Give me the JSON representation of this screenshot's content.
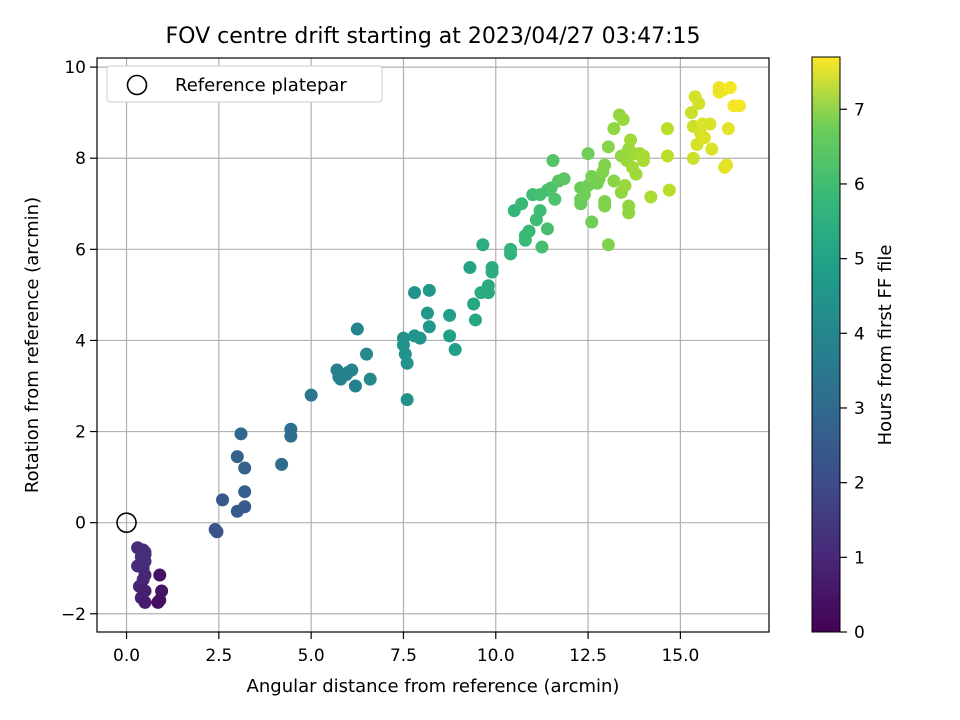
{
  "chart_data": {
    "type": "scatter",
    "title": "FOV centre drift starting at 2023/04/27 03:47:15",
    "xlabel": "Angular distance from reference (arcmin)",
    "ylabel": "Rotation from reference (arcmin)",
    "xlim": [
      -0.8,
      17.4
    ],
    "ylim": [
      -2.4,
      10.2
    ],
    "xticks": [
      "0.0",
      "2.5",
      "5.0",
      "7.5",
      "10.0",
      "12.5",
      "15.0"
    ],
    "yticks": [
      "−2",
      "0",
      "2",
      "4",
      "6",
      "8",
      "10"
    ],
    "grid": true,
    "legend": {
      "position": "top-left",
      "label": "Reference platepar"
    },
    "reference_point": {
      "x": 0,
      "y": 0
    },
    "colorbar": {
      "label": "Hours from first FF file",
      "colormap": "viridis",
      "range": [
        0,
        7.7
      ],
      "ticks": [
        "0",
        "1",
        "2",
        "3",
        "4",
        "5",
        "6",
        "7"
      ]
    },
    "points": [
      {
        "x": 0.3,
        "y": -0.55,
        "c": 0.9
      },
      {
        "x": 0.45,
        "y": -0.6,
        "c": 0.9
      },
      {
        "x": 0.5,
        "y": -0.7,
        "c": 1.0
      },
      {
        "x": 0.3,
        "y": -0.95,
        "c": 0.9
      },
      {
        "x": 0.5,
        "y": -0.85,
        "c": 1.0
      },
      {
        "x": 0.45,
        "y": -1.0,
        "c": 1.0
      },
      {
        "x": 0.5,
        "y": -1.15,
        "c": 0.8
      },
      {
        "x": 0.45,
        "y": -1.25,
        "c": 0.8
      },
      {
        "x": 0.35,
        "y": -1.4,
        "c": 0.8
      },
      {
        "x": 0.5,
        "y": -1.5,
        "c": 0.7
      },
      {
        "x": 0.4,
        "y": -1.65,
        "c": 0.7
      },
      {
        "x": 0.5,
        "y": -1.75,
        "c": 0.6
      },
      {
        "x": 0.9,
        "y": -1.15,
        "c": 0.4
      },
      {
        "x": 0.95,
        "y": -1.5,
        "c": 0.4
      },
      {
        "x": 0.9,
        "y": -1.7,
        "c": 0.4
      },
      {
        "x": 0.85,
        "y": -1.75,
        "c": 0.3
      },
      {
        "x": 0.4,
        "y": -0.75,
        "c": 1.0
      },
      {
        "x": 0.5,
        "y": -0.65,
        "c": 1.0
      },
      {
        "x": 2.45,
        "y": -0.2,
        "c": 2.0
      },
      {
        "x": 2.4,
        "y": -0.15,
        "c": 2.0
      },
      {
        "x": 2.6,
        "y": 0.5,
        "c": 2.1
      },
      {
        "x": 3.0,
        "y": 0.25,
        "c": 2.2
      },
      {
        "x": 3.2,
        "y": 0.35,
        "c": 2.2
      },
      {
        "x": 3.2,
        "y": 0.68,
        "c": 2.3
      },
      {
        "x": 3.0,
        "y": 1.45,
        "c": 2.4
      },
      {
        "x": 3.2,
        "y": 1.2,
        "c": 2.4
      },
      {
        "x": 3.1,
        "y": 1.95,
        "c": 2.6
      },
      {
        "x": 4.2,
        "y": 1.28,
        "c": 2.7
      },
      {
        "x": 4.45,
        "y": 2.05,
        "c": 2.8
      },
      {
        "x": 4.45,
        "y": 1.9,
        "c": 2.8
      },
      {
        "x": 5.0,
        "y": 2.8,
        "c": 3.0
      },
      {
        "x": 5.7,
        "y": 3.35,
        "c": 3.3
      },
      {
        "x": 5.75,
        "y": 3.2,
        "c": 3.3
      },
      {
        "x": 5.8,
        "y": 3.15,
        "c": 3.4
      },
      {
        "x": 6.0,
        "y": 3.3,
        "c": 3.4
      },
      {
        "x": 6.1,
        "y": 3.35,
        "c": 3.5
      },
      {
        "x": 5.95,
        "y": 3.25,
        "c": 3.4
      },
      {
        "x": 6.2,
        "y": 3.0,
        "c": 3.4
      },
      {
        "x": 6.25,
        "y": 4.25,
        "c": 3.5
      },
      {
        "x": 6.5,
        "y": 3.7,
        "c": 3.6
      },
      {
        "x": 6.6,
        "y": 3.15,
        "c": 3.6
      },
      {
        "x": 7.5,
        "y": 4.05,
        "c": 3.9
      },
      {
        "x": 7.5,
        "y": 3.9,
        "c": 3.9
      },
      {
        "x": 7.55,
        "y": 3.7,
        "c": 3.9
      },
      {
        "x": 7.6,
        "y": 3.5,
        "c": 3.9
      },
      {
        "x": 7.6,
        "y": 2.7,
        "c": 3.9
      },
      {
        "x": 7.8,
        "y": 4.1,
        "c": 4.0
      },
      {
        "x": 7.95,
        "y": 4.05,
        "c": 4.0
      },
      {
        "x": 7.8,
        "y": 5.05,
        "c": 4.0
      },
      {
        "x": 8.15,
        "y": 4.6,
        "c": 4.1
      },
      {
        "x": 8.2,
        "y": 4.3,
        "c": 4.1
      },
      {
        "x": 8.2,
        "y": 5.1,
        "c": 4.1
      },
      {
        "x": 8.75,
        "y": 4.55,
        "c": 4.3
      },
      {
        "x": 8.75,
        "y": 4.1,
        "c": 4.3
      },
      {
        "x": 8.9,
        "y": 3.8,
        "c": 4.3
      },
      {
        "x": 9.3,
        "y": 5.6,
        "c": 4.5
      },
      {
        "x": 9.4,
        "y": 4.8,
        "c": 4.6
      },
      {
        "x": 9.45,
        "y": 4.45,
        "c": 4.6
      },
      {
        "x": 9.6,
        "y": 5.05,
        "c": 4.7
      },
      {
        "x": 9.8,
        "y": 5.2,
        "c": 4.7
      },
      {
        "x": 9.8,
        "y": 5.05,
        "c": 4.7
      },
      {
        "x": 9.65,
        "y": 6.1,
        "c": 4.8
      },
      {
        "x": 9.9,
        "y": 5.6,
        "c": 4.8
      },
      {
        "x": 9.9,
        "y": 5.5,
        "c": 4.8
      },
      {
        "x": 10.4,
        "y": 6.0,
        "c": 5.0
      },
      {
        "x": 10.4,
        "y": 5.9,
        "c": 5.0
      },
      {
        "x": 10.5,
        "y": 6.85,
        "c": 5.1
      },
      {
        "x": 10.8,
        "y": 6.3,
        "c": 5.2
      },
      {
        "x": 10.8,
        "y": 6.2,
        "c": 5.2
      },
      {
        "x": 10.7,
        "y": 7.0,
        "c": 5.2
      },
      {
        "x": 10.9,
        "y": 6.4,
        "c": 5.2
      },
      {
        "x": 11.0,
        "y": 7.2,
        "c": 5.3
      },
      {
        "x": 11.1,
        "y": 6.65,
        "c": 5.3
      },
      {
        "x": 11.2,
        "y": 6.85,
        "c": 5.3
      },
      {
        "x": 11.25,
        "y": 6.05,
        "c": 5.4
      },
      {
        "x": 11.2,
        "y": 7.2,
        "c": 5.4
      },
      {
        "x": 11.4,
        "y": 6.45,
        "c": 5.4
      },
      {
        "x": 11.4,
        "y": 7.3,
        "c": 5.4
      },
      {
        "x": 11.5,
        "y": 7.35,
        "c": 5.5
      },
      {
        "x": 11.55,
        "y": 7.95,
        "c": 5.6
      },
      {
        "x": 11.6,
        "y": 7.1,
        "c": 5.5
      },
      {
        "x": 11.7,
        "y": 7.5,
        "c": 5.6
      },
      {
        "x": 11.85,
        "y": 7.55,
        "c": 5.7
      },
      {
        "x": 12.3,
        "y": 7.0,
        "c": 5.9
      },
      {
        "x": 12.3,
        "y": 7.1,
        "c": 5.9
      },
      {
        "x": 12.3,
        "y": 7.35,
        "c": 5.9
      },
      {
        "x": 12.4,
        "y": 7.2,
        "c": 6.0
      },
      {
        "x": 12.5,
        "y": 7.4,
        "c": 6.0
      },
      {
        "x": 12.5,
        "y": 8.1,
        "c": 6.0
      },
      {
        "x": 12.6,
        "y": 7.6,
        "c": 6.1
      },
      {
        "x": 12.6,
        "y": 6.6,
        "c": 6.0
      },
      {
        "x": 12.75,
        "y": 7.45,
        "c": 6.1
      },
      {
        "x": 12.8,
        "y": 7.55,
        "c": 6.1
      },
      {
        "x": 12.9,
        "y": 7.7,
        "c": 6.2
      },
      {
        "x": 12.95,
        "y": 7.85,
        "c": 6.2
      },
      {
        "x": 12.95,
        "y": 7.05,
        "c": 6.2
      },
      {
        "x": 12.95,
        "y": 6.95,
        "c": 6.2
      },
      {
        "x": 13.05,
        "y": 8.25,
        "c": 6.3
      },
      {
        "x": 13.05,
        "y": 6.1,
        "c": 6.2
      },
      {
        "x": 13.2,
        "y": 7.5,
        "c": 6.3
      },
      {
        "x": 13.2,
        "y": 8.65,
        "c": 6.4
      },
      {
        "x": 13.35,
        "y": 8.95,
        "c": 6.4
      },
      {
        "x": 13.4,
        "y": 8.05,
        "c": 6.4
      },
      {
        "x": 13.4,
        "y": 7.25,
        "c": 6.4
      },
      {
        "x": 13.45,
        "y": 8.85,
        "c": 6.5
      },
      {
        "x": 13.5,
        "y": 7.4,
        "c": 6.5
      },
      {
        "x": 13.55,
        "y": 7.95,
        "c": 6.5
      },
      {
        "x": 13.6,
        "y": 8.2,
        "c": 6.5
      },
      {
        "x": 13.6,
        "y": 6.95,
        "c": 6.4
      },
      {
        "x": 13.6,
        "y": 6.8,
        "c": 6.4
      },
      {
        "x": 13.65,
        "y": 8.4,
        "c": 6.6
      },
      {
        "x": 13.7,
        "y": 7.8,
        "c": 6.6
      },
      {
        "x": 13.75,
        "y": 8.1,
        "c": 6.6
      },
      {
        "x": 13.8,
        "y": 7.65,
        "c": 6.6
      },
      {
        "x": 13.9,
        "y": 8.1,
        "c": 6.6
      },
      {
        "x": 14.0,
        "y": 7.95,
        "c": 6.7
      },
      {
        "x": 14.0,
        "y": 8.05,
        "c": 6.7
      },
      {
        "x": 14.2,
        "y": 7.15,
        "c": 6.7
      },
      {
        "x": 14.65,
        "y": 8.65,
        "c": 6.9
      },
      {
        "x": 14.65,
        "y": 8.05,
        "c": 6.9
      },
      {
        "x": 14.7,
        "y": 7.3,
        "c": 6.9
      },
      {
        "x": 15.3,
        "y": 9.0,
        "c": 7.1
      },
      {
        "x": 15.35,
        "y": 8.7,
        "c": 7.1
      },
      {
        "x": 15.35,
        "y": 8.0,
        "c": 7.1
      },
      {
        "x": 15.4,
        "y": 9.35,
        "c": 7.2
      },
      {
        "x": 15.45,
        "y": 8.3,
        "c": 7.2
      },
      {
        "x": 15.5,
        "y": 9.2,
        "c": 7.2
      },
      {
        "x": 15.55,
        "y": 8.55,
        "c": 7.2
      },
      {
        "x": 15.6,
        "y": 8.75,
        "c": 7.3
      },
      {
        "x": 15.65,
        "y": 8.45,
        "c": 7.3
      },
      {
        "x": 15.8,
        "y": 8.75,
        "c": 7.3
      },
      {
        "x": 15.85,
        "y": 8.2,
        "c": 7.3
      },
      {
        "x": 16.05,
        "y": 9.55,
        "c": 7.5
      },
      {
        "x": 16.05,
        "y": 9.45,
        "c": 7.5
      },
      {
        "x": 16.15,
        "y": 9.5,
        "c": 7.5
      },
      {
        "x": 16.2,
        "y": 7.8,
        "c": 7.4
      },
      {
        "x": 16.25,
        "y": 7.85,
        "c": 7.4
      },
      {
        "x": 16.3,
        "y": 8.65,
        "c": 7.4
      },
      {
        "x": 16.35,
        "y": 9.55,
        "c": 7.6
      },
      {
        "x": 16.45,
        "y": 9.15,
        "c": 7.6
      },
      {
        "x": 16.6,
        "y": 9.15,
        "c": 7.6
      }
    ]
  }
}
